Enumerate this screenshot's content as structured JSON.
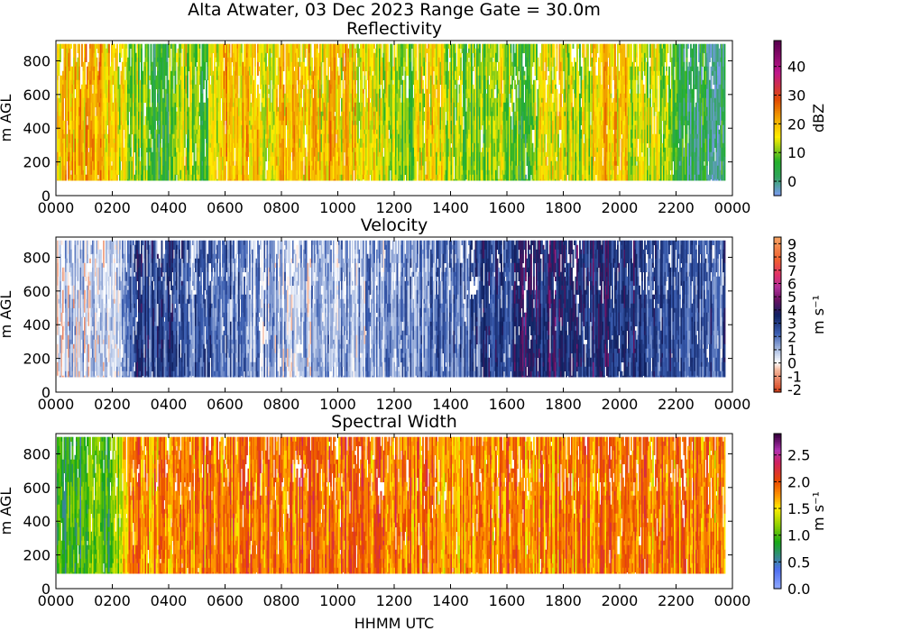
{
  "figure_title": "Alta Atwater, 03 Dec 2023 Range Gate = 30.0m",
  "x_axis_label": "HHMM UTC",
  "chart_data": [
    {
      "type": "heatmap",
      "title": "Reflectivity",
      "ylabel": "m AGL",
      "colorbar_label": "dBZ",
      "xlim": [
        0,
        24
      ],
      "ylim": [
        0,
        920
      ],
      "data_y_range": [
        90,
        900
      ],
      "data_x_end": 23.7,
      "xticks": [
        "0000",
        "0200",
        "0400",
        "0600",
        "0800",
        "1000",
        "1200",
        "1400",
        "1600",
        "1800",
        "2000",
        "2200",
        "0000"
      ],
      "yticks": [
        0,
        200,
        400,
        600,
        800
      ],
      "colorbar_range": [
        -5,
        49
      ],
      "colorbar_ticks": [
        "0",
        "10",
        "20",
        "30",
        "40"
      ],
      "colorbar_tick_values": [
        0,
        10,
        20,
        30,
        40
      ],
      "colormap": [
        [
          "#7a9bf0",
          0
        ],
        [
          "#2fa55a",
          0.12
        ],
        [
          "#22b02a",
          0.22
        ],
        [
          "#ffee00",
          0.38
        ],
        [
          "#f2a500",
          0.5
        ],
        [
          "#e24c00",
          0.62
        ],
        [
          "#c0168c",
          0.8
        ],
        [
          "#5a004f",
          1
        ]
      ],
      "profile": [
        [
          0,
          0.42
        ],
        [
          1.5,
          0.48
        ],
        [
          2.5,
          0.34
        ],
        [
          3.8,
          0.18
        ],
        [
          4.6,
          0.36
        ],
        [
          5.2,
          0.2
        ],
        [
          6,
          0.52
        ],
        [
          7,
          0.42
        ],
        [
          9,
          0.44
        ],
        [
          11,
          0.42
        ],
        [
          12.5,
          0.3
        ],
        [
          13.2,
          0.4
        ],
        [
          14.8,
          0.26
        ],
        [
          15.8,
          0.36
        ],
        [
          16.6,
          0.22
        ],
        [
          17.5,
          0.42
        ],
        [
          18.5,
          0.3
        ],
        [
          19.5,
          0.45
        ],
        [
          20.8,
          0.35
        ],
        [
          21.6,
          0.3
        ],
        [
          22.2,
          0.14
        ],
        [
          23.7,
          0.14
        ]
      ],
      "noise": 0.14,
      "gap_fraction": 0.08
    },
    {
      "type": "heatmap",
      "title": "Velocity",
      "ylabel": "m AGL",
      "colorbar_label": "m s⁻¹",
      "xlim": [
        0,
        24
      ],
      "ylim": [
        0,
        920
      ],
      "data_y_range": [
        90,
        900
      ],
      "data_x_end": 23.7,
      "xticks": [
        "0000",
        "0200",
        "0400",
        "0600",
        "0800",
        "1000",
        "1200",
        "1400",
        "1600",
        "1800",
        "2000",
        "2200",
        "0000"
      ],
      "yticks": [
        0,
        200,
        400,
        600,
        800
      ],
      "colorbar_range": [
        -2.2,
        9.5
      ],
      "colorbar_ticks": [
        "-2",
        "-1",
        "0",
        "1",
        "2",
        "3",
        "4",
        "5",
        "6",
        "7",
        "8",
        "9"
      ],
      "colorbar_tick_values": [
        -2,
        -1,
        0,
        1,
        2,
        3,
        4,
        5,
        6,
        7,
        8,
        9
      ],
      "colormap": [
        [
          "#d8401a",
          0
        ],
        [
          "#f3b59a",
          0.14
        ],
        [
          "#ffffff",
          0.19
        ],
        [
          "#b8c8e8",
          0.26
        ],
        [
          "#3a5db0",
          0.38
        ],
        [
          "#0f2060",
          0.5
        ],
        [
          "#6a1060",
          0.6
        ],
        [
          "#b0309a",
          0.68
        ],
        [
          "#e0306a",
          0.76
        ],
        [
          "#f06030",
          0.86
        ],
        [
          "#f5a060",
          1
        ]
      ],
      "profile": [
        [
          0,
          0.22
        ],
        [
          2.2,
          0.24
        ],
        [
          2.8,
          0.44
        ],
        [
          4.5,
          0.4
        ],
        [
          6,
          0.36
        ],
        [
          8,
          0.28
        ],
        [
          10,
          0.3
        ],
        [
          12,
          0.3
        ],
        [
          13.5,
          0.36
        ],
        [
          15,
          0.4
        ],
        [
          16.5,
          0.5
        ],
        [
          18,
          0.52
        ],
        [
          19.5,
          0.47
        ],
        [
          21.5,
          0.42
        ],
        [
          23.7,
          0.4
        ]
      ],
      "noise": 0.12,
      "gap_fraction": 0.1
    },
    {
      "type": "heatmap",
      "title": "Spectral Width",
      "ylabel": "m AGL",
      "colorbar_label": "m s⁻¹",
      "xlim": [
        0,
        24
      ],
      "ylim": [
        0,
        920
      ],
      "data_y_range": [
        90,
        900
      ],
      "data_x_end": 23.7,
      "xticks": [
        "0000",
        "0200",
        "0400",
        "0600",
        "0800",
        "1000",
        "1200",
        "1400",
        "1600",
        "1800",
        "2000",
        "2200",
        "0000"
      ],
      "yticks": [
        0,
        200,
        400,
        600,
        800
      ],
      "colorbar_range": [
        0,
        2.9
      ],
      "colorbar_ticks": [
        "0.0",
        "0.5",
        "1.0",
        "1.5",
        "2.0",
        "2.5"
      ],
      "colorbar_tick_values": [
        0,
        0.5,
        1,
        1.5,
        2,
        2.5
      ],
      "colormap": [
        [
          "#8ea8ff",
          0
        ],
        [
          "#4f6ff0",
          0.12
        ],
        [
          "#16a816",
          0.3
        ],
        [
          "#9ad400",
          0.42
        ],
        [
          "#ffee00",
          0.52
        ],
        [
          "#ff9900",
          0.6
        ],
        [
          "#e84800",
          0.7
        ],
        [
          "#d02060",
          0.82
        ],
        [
          "#b030b0",
          0.9
        ],
        [
          "#3a0040",
          1
        ]
      ],
      "profile": [
        [
          0,
          0.3
        ],
        [
          2,
          0.36
        ],
        [
          2.6,
          0.62
        ],
        [
          8,
          0.66
        ],
        [
          12,
          0.66
        ],
        [
          14,
          0.6
        ],
        [
          16,
          0.64
        ],
        [
          20,
          0.64
        ],
        [
          23.7,
          0.6
        ]
      ],
      "noise": 0.14,
      "gap_fraction": 0.07
    }
  ]
}
